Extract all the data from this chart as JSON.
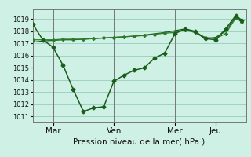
{
  "background_color": "#cff0e4",
  "grid_color": "#99ccbb",
  "line_color_dark": "#1a5c1a",
  "line_color_mid": "#2d7a2d",
  "xlabel": "Pression niveau de la mer( hPa )",
  "ylim": [
    1010.5,
    1019.8
  ],
  "yticks": [
    1011,
    1012,
    1013,
    1014,
    1015,
    1016,
    1017,
    1018,
    1019
  ],
  "xtick_labels": [
    "Mar",
    "Ven",
    "Mer",
    "Jeu"
  ],
  "vline_x": [
    1,
    4,
    7,
    9
  ],
  "series1_x": [
    0,
    0.5,
    1,
    1.5,
    2,
    2.5,
    3,
    3.5,
    4,
    4.5,
    5,
    5.5,
    6,
    6.5,
    7,
    7.5,
    8,
    8.5,
    9,
    9.5,
    10,
    10.3
  ],
  "series1_y": [
    1018.6,
    1017.3,
    1016.7,
    1015.2,
    1013.2,
    1011.4,
    1011.7,
    1011.8,
    1013.9,
    1014.4,
    1014.8,
    1015.0,
    1015.8,
    1016.2,
    1017.8,
    1018.2,
    1018.0,
    1017.4,
    1017.3,
    1018.2,
    1019.3,
    1018.9
  ],
  "series2_x": [
    0,
    0.5,
    1,
    1.5,
    2,
    2.5,
    3,
    3.5,
    4,
    4.5,
    5,
    5.5,
    6,
    6.5,
    7,
    7.5,
    8,
    8.5,
    9,
    9.5,
    10,
    10.3
  ],
  "series2_y": [
    1017.3,
    1017.3,
    1017.3,
    1017.35,
    1017.35,
    1017.35,
    1017.4,
    1017.45,
    1017.5,
    1017.55,
    1017.6,
    1017.65,
    1017.75,
    1017.85,
    1017.9,
    1018.1,
    1017.9,
    1017.5,
    1017.4,
    1017.8,
    1019.1,
    1018.75
  ],
  "series3_x": [
    0,
    0.5,
    1,
    1.5,
    2,
    2.5,
    3,
    3.5,
    4,
    4.5,
    5,
    5.5,
    6,
    6.5,
    7,
    7.5,
    8,
    8.5,
    9,
    9.5,
    10,
    10.3
  ],
  "series3_y": [
    1017.1,
    1017.2,
    1017.25,
    1017.3,
    1017.3,
    1017.35,
    1017.4,
    1017.45,
    1017.5,
    1017.55,
    1017.6,
    1017.7,
    1017.8,
    1017.9,
    1018.05,
    1018.2,
    1017.9,
    1017.4,
    1017.5,
    1018.0,
    1019.2,
    1018.85
  ],
  "xlim": [
    0,
    10.5
  ]
}
